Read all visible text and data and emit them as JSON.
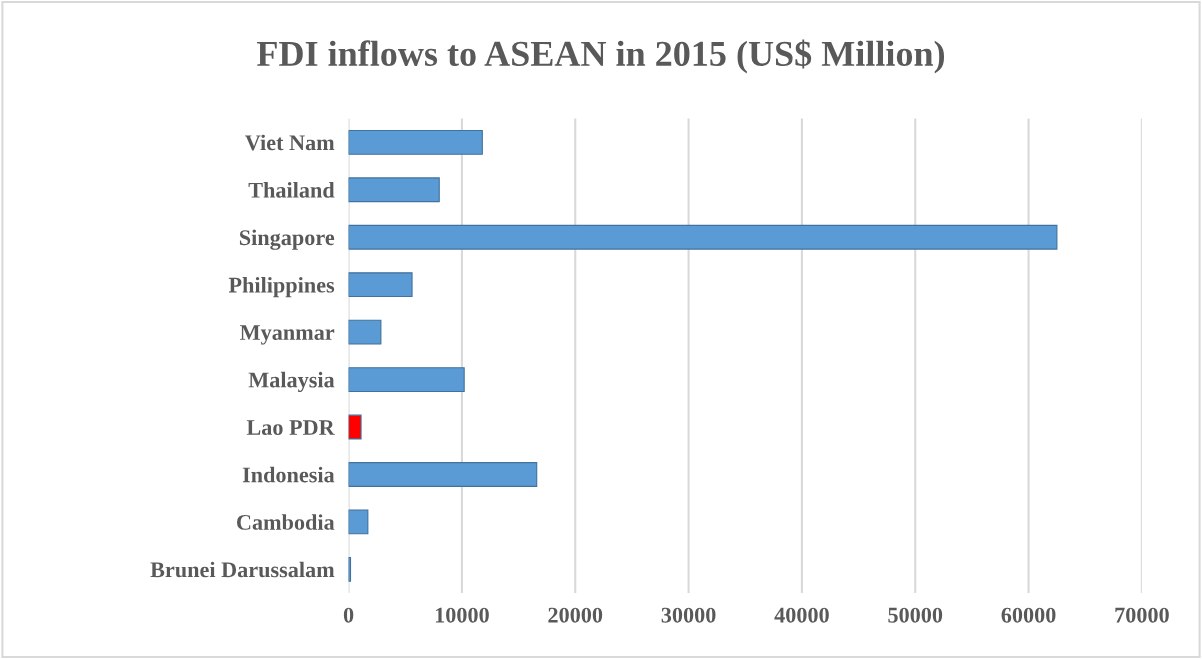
{
  "chart_data": {
    "type": "bar",
    "orientation": "horizontal",
    "title": "FDI inflows to ASEAN in 2015 (US$ Million)",
    "categories": [
      "Viet Nam",
      "Thailand",
      "Singapore",
      "Philippines",
      "Myanmar",
      "Malaysia",
      "Lao PDR",
      "Indonesia",
      "Cambodia",
      "Brunei Darussalam"
    ],
    "values": [
      11800,
      8000,
      62500,
      5600,
      2850,
      10200,
      1100,
      16600,
      1700,
      170
    ],
    "colors": [
      "#5b9bd5",
      "#5b9bd5",
      "#5b9bd5",
      "#5b9bd5",
      "#5b9bd5",
      "#5b9bd5",
      "#ff0000",
      "#5b9bd5",
      "#5b9bd5",
      "#5b9bd5"
    ],
    "xlim": [
      0,
      70000
    ],
    "xticks": [
      0,
      10000,
      20000,
      30000,
      40000,
      50000,
      60000,
      70000
    ],
    "grid": "x"
  }
}
